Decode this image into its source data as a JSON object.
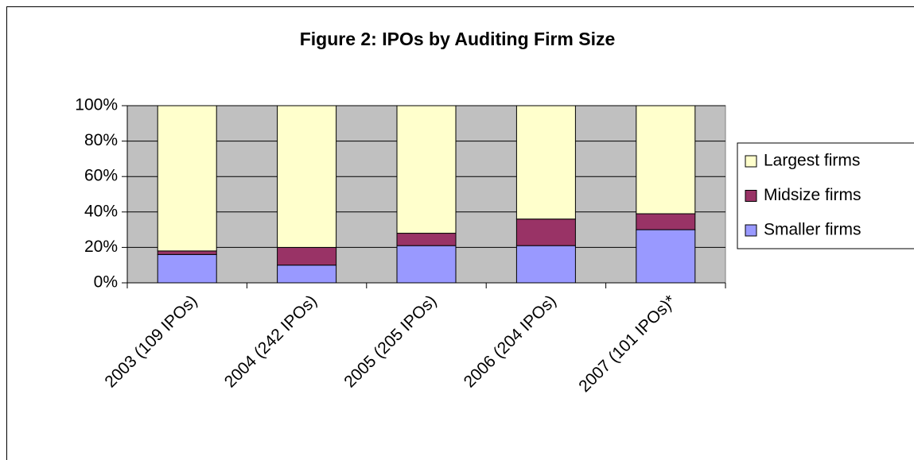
{
  "chart_data": {
    "type": "stacked_bar",
    "title": "Figure 2: IPOs by Auditing Firm Size",
    "categories": [
      "2003 (109 IPOs)",
      "2004 (242 IPOs)",
      "2005 (205 IPOs)",
      "2006 (204 IPOs)",
      "2007 (101 IPOs)*"
    ],
    "series": [
      {
        "name": "Smaller firms",
        "color": "#9999ff",
        "values": [
          16,
          10,
          21,
          21,
          30
        ]
      },
      {
        "name": "Midsize firms",
        "color": "#993366",
        "values": [
          2,
          10,
          7,
          15,
          9
        ]
      },
      {
        "name": "Largest firms",
        "color": "#ffffcc",
        "values": [
          82,
          80,
          72,
          64,
          61
        ]
      }
    ],
    "ylim": [
      0,
      100
    ],
    "yticks": [
      {
        "value": 0,
        "label": "0%"
      },
      {
        "value": 20,
        "label": "20%"
      },
      {
        "value": 40,
        "label": "40%"
      },
      {
        "value": 60,
        "label": "60%"
      },
      {
        "value": 80,
        "label": "80%"
      },
      {
        "value": 100,
        "label": "100%"
      }
    ],
    "grid": true,
    "legend": "right"
  }
}
